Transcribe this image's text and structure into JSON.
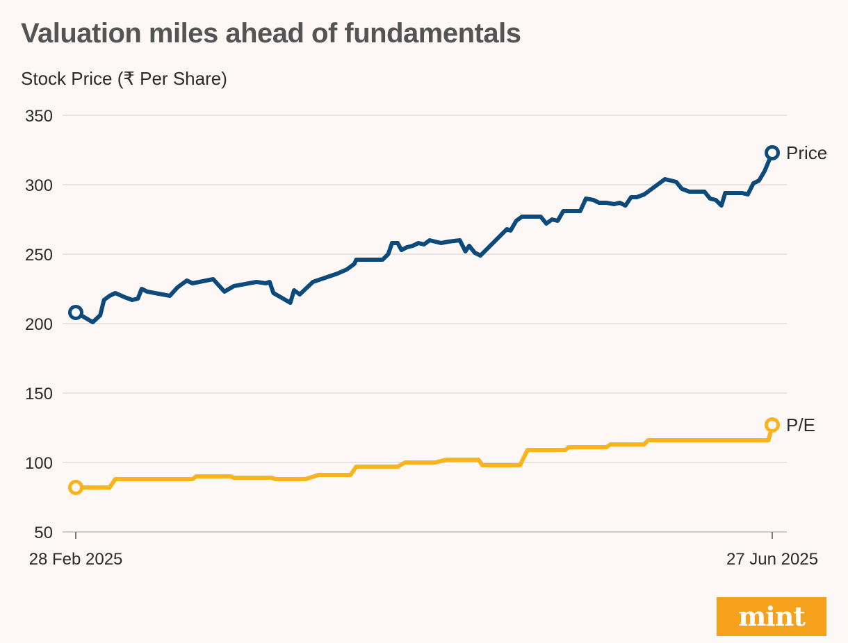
{
  "title": "Valuation miles ahead of fundamentals",
  "brand": "mint",
  "chart_data": {
    "type": "line",
    "title": "Valuation miles ahead of fundamentals",
    "ylabel": "Stock Price (₹ Per Share)",
    "xlabel": "",
    "ylim": [
      50,
      350
    ],
    "yticks": [
      50,
      100,
      150,
      200,
      250,
      300,
      350
    ],
    "x_range": [
      "28 Feb 2025",
      "27 Jun 2025"
    ],
    "x_tick_labels": [
      "28 Feb 2025",
      "27 Jun 2025"
    ],
    "x": [
      0,
      1.5,
      2.5,
      3.5,
      4,
      5,
      6,
      7,
      8,
      9,
      10,
      11,
      12,
      13,
      13.5,
      14,
      15,
      16,
      17,
      18,
      19,
      20,
      21,
      22,
      23,
      24,
      25,
      26,
      27,
      28,
      29,
      30,
      31,
      32,
      33,
      34,
      35,
      36,
      37,
      38,
      39,
      40,
      41,
      42,
      43,
      44,
      45,
      46,
      47,
      48,
      49,
      50,
      51,
      52,
      53,
      54,
      55,
      56,
      57,
      58,
      59,
      60,
      61,
      62,
      63,
      64,
      65,
      66,
      67,
      68,
      69,
      70,
      71,
      72,
      73,
      74,
      75,
      76,
      77,
      78,
      79,
      80,
      81,
      82,
      83,
      84,
      85,
      86,
      87,
      88,
      89,
      90,
      91,
      92,
      93,
      94,
      95,
      96,
      97,
      98,
      99,
      100,
      101,
      102,
      103,
      104,
      105,
      106,
      107,
      108,
      109,
      110,
      111,
      112,
      113,
      114,
      115,
      116,
      117,
      118,
      119,
      120,
      121,
      122,
      123,
      124,
      125,
      126,
      127,
      128,
      129,
      130,
      131,
      132,
      133,
      134,
      135,
      136,
      137,
      138,
      139,
      140,
      141,
      142,
      143,
      144,
      145,
      146,
      147,
      148,
      149,
      150,
      151,
      152,
      153,
      154,
      155,
      156,
      157,
      158,
      159,
      160,
      161,
      162,
      163,
      164,
      165,
      166,
      167,
      168,
      169,
      170,
      171,
      172,
      173,
      174,
      175,
      176,
      177,
      178,
      179
    ],
    "series": [
      {
        "name": "Price",
        "color": "#0b4a7a",
        "points": [
          [
            0,
            208
          ],
          [
            2,
            205
          ],
          [
            4.5,
            201
          ],
          [
            6.5,
            206
          ],
          [
            7.5,
            217
          ],
          [
            9,
            220
          ],
          [
            10.5,
            222
          ],
          [
            13,
            219
          ],
          [
            15,
            217
          ],
          [
            16.5,
            218
          ],
          [
            17.5,
            225
          ],
          [
            19,
            223
          ],
          [
            23,
            221
          ],
          [
            25,
            220
          ],
          [
            27,
            226
          ],
          [
            29.5,
            231
          ],
          [
            31,
            229
          ],
          [
            36.5,
            232
          ],
          [
            39.5,
            223
          ],
          [
            42,
            227
          ],
          [
            44,
            228
          ],
          [
            48,
            230
          ],
          [
            50.5,
            229
          ],
          [
            51.5,
            230
          ],
          [
            52.5,
            222
          ],
          [
            57,
            215
          ],
          [
            58,
            224
          ],
          [
            59.5,
            221
          ],
          [
            63,
            230
          ],
          [
            69.5,
            236
          ],
          [
            72,
            239
          ],
          [
            74,
            243
          ],
          [
            74.5,
            246
          ],
          [
            81.5,
            246
          ],
          [
            83,
            250
          ],
          [
            84,
            258
          ],
          [
            85.5,
            258
          ],
          [
            86.5,
            253
          ],
          [
            88,
            255
          ],
          [
            89.5,
            256
          ],
          [
            91,
            258
          ],
          [
            92.5,
            257
          ],
          [
            94,
            260
          ],
          [
            95.5,
            259
          ],
          [
            97,
            258
          ],
          [
            99,
            259
          ],
          [
            102,
            260
          ],
          [
            103.5,
            252
          ],
          [
            104.5,
            256
          ],
          [
            106,
            251
          ],
          [
            107.5,
            249
          ],
          [
            114.5,
            268
          ],
          [
            115.5,
            267
          ],
          [
            117,
            274
          ],
          [
            118.5,
            277
          ],
          [
            120,
            277
          ],
          [
            122,
            277
          ],
          [
            123.5,
            277
          ],
          [
            125,
            272
          ],
          [
            126.5,
            275
          ],
          [
            128,
            274
          ],
          [
            129.5,
            281
          ],
          [
            134,
            281
          ],
          [
            135.5,
            290
          ],
          [
            137.5,
            289
          ],
          [
            139,
            287
          ],
          [
            141,
            287
          ],
          [
            143,
            286
          ],
          [
            144.5,
            287
          ],
          [
            146,
            285
          ],
          [
            147.5,
            291
          ],
          [
            149,
            291
          ],
          [
            151,
            293
          ],
          [
            153,
            297
          ],
          [
            155,
            301
          ],
          [
            156.5,
            304
          ],
          [
            158,
            303
          ],
          [
            159.5,
            302
          ],
          [
            161,
            297
          ],
          [
            163,
            295
          ],
          [
            165,
            295
          ],
          [
            167,
            295
          ],
          [
            168.5,
            290
          ],
          [
            170,
            289
          ],
          [
            171.5,
            285
          ],
          [
            172.5,
            294
          ],
          [
            175,
            294
          ],
          [
            177,
            294
          ],
          [
            178.5,
            293
          ],
          [
            180,
            301
          ],
          [
            181.5,
            303
          ],
          [
            183,
            310
          ],
          [
            185,
            323
          ]
        ]
      },
      {
        "name": "P/E",
        "color": "#f9b31c",
        "points": [
          [
            0,
            82
          ],
          [
            9,
            82
          ],
          [
            10.5,
            88
          ],
          [
            31,
            88
          ],
          [
            32,
            90
          ],
          [
            41,
            90
          ],
          [
            42,
            89
          ],
          [
            52,
            89
          ],
          [
            53,
            88
          ],
          [
            61,
            88
          ],
          [
            64.5,
            91
          ],
          [
            73,
            91
          ],
          [
            74.5,
            97
          ],
          [
            85.5,
            97
          ],
          [
            87.5,
            100
          ],
          [
            95.5,
            100
          ],
          [
            98.5,
            102
          ],
          [
            107,
            102
          ],
          [
            108,
            98
          ],
          [
            118,
            98
          ],
          [
            120,
            109
          ],
          [
            130,
            109
          ],
          [
            131,
            111
          ],
          [
            141,
            111
          ],
          [
            142,
            113
          ],
          [
            151,
            113
          ],
          [
            152,
            116
          ],
          [
            184,
            116
          ],
          [
            185,
            127
          ]
        ]
      }
    ],
    "series_labels": [
      "Price",
      "P/E"
    ],
    "end_values": {
      "Price": 323,
      "P/E": 127
    },
    "start_values": {
      "Price": 208,
      "P/E": 82
    },
    "grid": true,
    "legend": "direct labels at line ends"
  }
}
